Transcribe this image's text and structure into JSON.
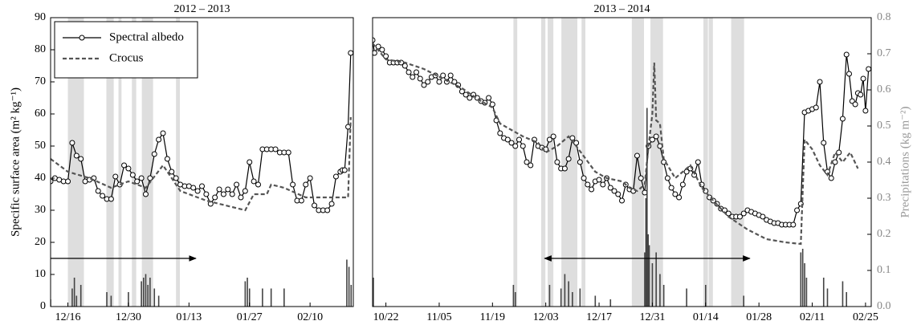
{
  "chart_data": [
    {
      "type": "line",
      "title": "2012 – 2013",
      "ylabel": "Specific surface area (m² kg⁻¹)",
      "xlim": [
        -4,
        66
      ],
      "ylim": [
        0,
        90
      ],
      "y2lim": [
        0,
        0.8
      ],
      "xticks": [
        {
          "value": 0,
          "label": "12/16"
        },
        {
          "value": 14,
          "label": "12/30"
        },
        {
          "value": 28,
          "label": "01/13"
        },
        {
          "value": 42,
          "label": "01/27"
        },
        {
          "value": 56,
          "label": "02/10"
        }
      ],
      "yticks": [
        0,
        10,
        20,
        30,
        40,
        50,
        60,
        70,
        80,
        90
      ],
      "legend": "upper left",
      "series": [
        {
          "name": "Spectral albedo",
          "color": "#000000",
          "marker": "circle",
          "x": [
            -4,
            -3,
            -2,
            -1,
            0,
            1,
            2,
            3,
            4,
            5,
            6,
            7,
            8,
            9,
            10,
            11,
            12,
            13,
            14,
            15,
            16,
            17,
            18,
            19,
            20,
            21,
            22,
            23,
            24,
            25,
            26,
            27,
            28,
            29,
            30,
            31,
            32,
            33,
            34,
            35,
            36,
            37,
            38,
            39,
            40,
            41,
            42,
            43,
            44,
            45,
            46,
            47,
            48,
            49,
            50,
            51,
            52,
            53,
            54,
            55,
            56,
            57,
            58,
            59,
            60,
            61,
            62,
            63,
            63.5,
            64,
            64.8,
            65.4
          ],
          "values": [
            39,
            40,
            39.5,
            39,
            39,
            51,
            47,
            46,
            39,
            39.5,
            40,
            36,
            34.5,
            33.5,
            33.5,
            40.5,
            38,
            44,
            43,
            41,
            39,
            40,
            35,
            40,
            47.5,
            52,
            54,
            46,
            42,
            40,
            38,
            37.5,
            37.5,
            37,
            36,
            37.5,
            35,
            32,
            34,
            36.5,
            35,
            36.5,
            35,
            38,
            34,
            36,
            45,
            39,
            38,
            49,
            49,
            49,
            49,
            48,
            48,
            48,
            38,
            33,
            33,
            38,
            40,
            31.5,
            30,
            30,
            30,
            32,
            40.5,
            42,
            42.5,
            42.5,
            56,
            79
          ]
        },
        {
          "name": "Crocus",
          "color": "#555555",
          "dash": true,
          "x": [
            -4,
            0,
            5,
            10,
            14,
            18,
            22,
            26,
            32,
            38,
            41,
            43,
            46,
            47,
            50,
            55,
            63,
            64.8,
            65.4
          ],
          "values": [
            46,
            42,
            40,
            37,
            39,
            37,
            44,
            36,
            33,
            31,
            30,
            35,
            35,
            38,
            37,
            34,
            34,
            34,
            59
          ]
        },
        {
          "type": "bar",
          "axis": "y2",
          "color": "#444444",
          "x": [
            -4,
            1,
            1.5,
            2,
            3,
            9,
            10,
            14,
            17,
            17.5,
            18,
            18.5,
            19,
            20,
            21,
            41,
            41.5,
            42,
            45,
            47,
            50,
            64.5,
            65,
            65.5
          ],
          "values": [
            0.02,
            0.05,
            0.08,
            0.03,
            0.06,
            0.04,
            0.03,
            0.04,
            0.07,
            0.08,
            0.09,
            0.06,
            0.08,
            0.05,
            0.03,
            0.07,
            0.08,
            0.05,
            0.05,
            0.05,
            0.05,
            0.13,
            0.11,
            0.06
          ]
        }
      ],
      "shaded_spans": [
        [
          0,
          3.7
        ],
        [
          8.9,
          10.6
        ],
        [
          11.7,
          12.4
        ],
        [
          14.8,
          15.8
        ],
        [
          17.1,
          19.7
        ],
        [
          25,
          25.9
        ]
      ],
      "arrows": [
        {
          "x": [
            -4,
            29.6
          ],
          "y": 15,
          "heads": "end"
        }
      ]
    },
    {
      "type": "line",
      "title": "2013 – 2014",
      "y2label": "Precipitations (kg m⁻²)",
      "xlim": [
        -3.5,
        127.5
      ],
      "ylim": [
        0,
        90
      ],
      "y2lim": [
        0,
        0.8
      ],
      "xticks": [
        {
          "value": 0,
          "label": "10/22"
        },
        {
          "value": 14,
          "label": "11/05"
        },
        {
          "value": 28,
          "label": "11/19"
        },
        {
          "value": 42,
          "label": "12/03"
        },
        {
          "value": 56,
          "label": "12/17"
        },
        {
          "value": 70,
          "label": "12/31"
        },
        {
          "value": 84,
          "label": "01/14"
        },
        {
          "value": 98,
          "label": "01/28"
        },
        {
          "value": 112,
          "label": "02/11"
        },
        {
          "value": 126,
          "label": "02/25"
        }
      ],
      "y2ticks": [
        {
          "value": 0,
          "label": "0.0"
        },
        0.1,
        0.2,
        0.3,
        0.4,
        0.5,
        0.6,
        0.7,
        0.8
      ],
      "series": [
        {
          "color": "#000000",
          "marker": "circle",
          "x": [
            -3.5,
            -3,
            -2,
            -1,
            0,
            1,
            2,
            3,
            4,
            5,
            6,
            7,
            8,
            9,
            10,
            11,
            12,
            13,
            14,
            15,
            16,
            17,
            18,
            19,
            20,
            21,
            22,
            23,
            24,
            25,
            26,
            27,
            28,
            29,
            30,
            31,
            32,
            33,
            34,
            35,
            36,
            37,
            38,
            39,
            40,
            41,
            42,
            43,
            44,
            45,
            46,
            47,
            48,
            49,
            50,
            51,
            52,
            53,
            54,
            55,
            56,
            57,
            58,
            59,
            60,
            61,
            62,
            63,
            64,
            65,
            66,
            67,
            68,
            69,
            70,
            71,
            72,
            73,
            74,
            75,
            76,
            77,
            78,
            79,
            80,
            81,
            82,
            83,
            84,
            85,
            86,
            87,
            88,
            89,
            90,
            91,
            92,
            93,
            94,
            95,
            96,
            97,
            98,
            99,
            100,
            101,
            102,
            103,
            104,
            105,
            106,
            107,
            108,
            109,
            110,
            111,
            112,
            113,
            114,
            115,
            116,
            117,
            118,
            119,
            120,
            121,
            121.7,
            122.5,
            123.3,
            124,
            124.7,
            125.4,
            126,
            126.8
          ],
          "values": [
            83,
            79,
            81,
            80,
            78,
            76,
            76,
            76,
            76,
            75,
            73,
            71.5,
            73,
            71,
            69,
            70,
            71.5,
            72,
            70,
            72,
            70,
            72,
            70,
            69,
            67,
            66,
            65,
            66,
            65,
            64,
            63.5,
            65,
            63,
            58,
            54,
            52.5,
            52,
            51,
            50,
            52,
            50,
            45,
            44,
            52,
            50,
            49.5,
            49,
            52,
            53,
            45,
            43,
            43,
            46,
            52.5,
            51,
            45,
            40,
            38,
            36.5,
            39,
            39.5,
            38,
            40,
            37,
            36,
            35,
            33,
            38,
            36.5,
            36,
            47,
            40,
            35.5,
            50,
            52,
            53,
            50,
            45,
            40,
            37,
            35,
            34,
            38,
            42,
            43,
            41,
            45,
            38,
            36,
            34,
            33,
            32,
            30.5,
            30,
            29,
            28,
            28,
            28,
            29,
            30,
            29.5,
            29,
            28.5,
            28,
            27,
            26.5,
            26,
            26,
            25.5,
            25.5,
            25.5,
            25.5,
            30,
            32,
            60.5,
            61,
            61.5,
            62,
            70,
            51,
            42,
            40,
            45,
            48,
            58.5,
            78.5,
            72.5,
            64,
            63,
            66.5,
            66,
            71,
            61,
            74
          ]
        },
        {
          "color": "#555555",
          "dash": true,
          "x": [
            -3.5,
            0,
            5,
            10,
            15,
            20,
            25,
            28,
            30,
            33,
            36,
            40,
            42,
            45,
            48,
            50,
            55,
            58,
            62,
            64,
            66,
            68,
            69,
            70,
            70.5,
            71,
            72,
            73,
            76,
            80,
            83,
            86,
            90,
            95,
            100,
            105,
            109,
            110,
            112,
            114,
            116,
            118,
            120,
            122,
            124
          ],
          "values": [
            82,
            77,
            76,
            74,
            71,
            68,
            64,
            62,
            57,
            55,
            53,
            51,
            48,
            50,
            53,
            50,
            42,
            40,
            39,
            37,
            36,
            38,
            50,
            60,
            76,
            58,
            57,
            46,
            40,
            44,
            37,
            33,
            28,
            24,
            21,
            20,
            19.5,
            52,
            49,
            44,
            41,
            48,
            45,
            48,
            43
          ]
        },
        {
          "type": "bar",
          "axis": "y2",
          "color": "#444444",
          "x": [
            -3.3,
            33.5,
            34,
            43,
            46,
            47,
            48,
            49,
            51,
            55,
            59,
            68,
            68.3,
            68.6,
            68.9,
            69.2,
            70,
            71,
            72,
            73,
            79,
            84,
            94,
            109,
            109.5,
            110,
            110.5,
            115,
            116,
            120,
            121
          ],
          "values": [
            0.08,
            0.06,
            0.04,
            0.06,
            0.05,
            0.09,
            0.07,
            0.04,
            0.05,
            0.03,
            0.02,
            0.15,
            0.3,
            0.55,
            0.2,
            0.17,
            0.12,
            0.15,
            0.09,
            0.06,
            0.05,
            0.06,
            0.03,
            0.15,
            0.16,
            0.12,
            0.08,
            0.08,
            0.05,
            0.07,
            0.04
          ]
        }
      ],
      "shaded_spans": [
        [
          33.5,
          34.5
        ],
        [
          40.8,
          41.9
        ],
        [
          42.5,
          44
        ],
        [
          46.1,
          50.3
        ],
        [
          51.4,
          52.4
        ],
        [
          64.6,
          67.8
        ],
        [
          69.5,
          72.8
        ],
        [
          83.4,
          84.6
        ],
        [
          84.8,
          85.9
        ],
        [
          90.7,
          94.1
        ]
      ],
      "arrows": [
        {
          "x": [
            41.7,
            95.6
          ],
          "y": 15,
          "heads": "both"
        }
      ]
    }
  ]
}
